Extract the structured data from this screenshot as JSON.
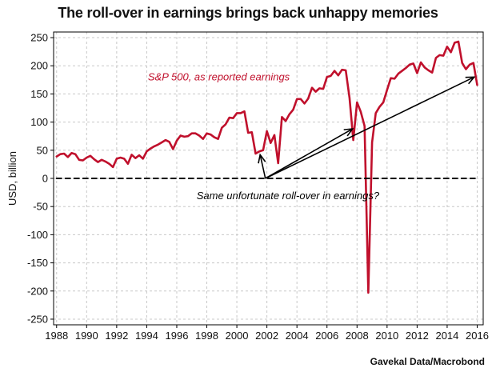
{
  "chart_data": {
    "type": "line",
    "title": "The roll-over in earnings brings back unhappy memories",
    "ylabel": "USD, billion",
    "xlabel": "",
    "source": "Gavekal Data/Macrobond",
    "xlim": [
      1987.8,
      2016.4
    ],
    "ylim": [
      -260,
      260
    ],
    "x_ticks": [
      1988,
      1990,
      1992,
      1994,
      1996,
      1998,
      2000,
      2002,
      2004,
      2006,
      2008,
      2010,
      2012,
      2014,
      2016
    ],
    "y_ticks": [
      -250,
      -200,
      -150,
      -100,
      -50,
      0,
      50,
      100,
      150,
      200,
      250
    ],
    "grid": true,
    "series": [
      {
        "name": "S&P 500, as reported earnings",
        "color": "#c0102c",
        "points": [
          [
            1988.0,
            39
          ],
          [
            1988.25,
            43
          ],
          [
            1988.5,
            44
          ],
          [
            1988.75,
            38
          ],
          [
            1989.0,
            45
          ],
          [
            1989.25,
            43
          ],
          [
            1989.5,
            33
          ],
          [
            1989.75,
            32
          ],
          [
            1990.0,
            37
          ],
          [
            1990.25,
            40
          ],
          [
            1990.5,
            34
          ],
          [
            1990.75,
            29
          ],
          [
            1991.0,
            33
          ],
          [
            1991.25,
            30
          ],
          [
            1991.5,
            26
          ],
          [
            1991.75,
            20
          ],
          [
            1992.0,
            35
          ],
          [
            1992.25,
            37
          ],
          [
            1992.5,
            35
          ],
          [
            1992.75,
            26
          ],
          [
            1993.0,
            42
          ],
          [
            1993.25,
            36
          ],
          [
            1993.5,
            41
          ],
          [
            1993.75,
            35
          ],
          [
            1994.0,
            48
          ],
          [
            1994.25,
            53
          ],
          [
            1994.5,
            57
          ],
          [
            1994.75,
            60
          ],
          [
            1995.0,
            64
          ],
          [
            1995.25,
            68
          ],
          [
            1995.5,
            65
          ],
          [
            1995.75,
            52
          ],
          [
            1996.0,
            67
          ],
          [
            1996.25,
            76
          ],
          [
            1996.5,
            74
          ],
          [
            1996.75,
            75
          ],
          [
            1997.0,
            80
          ],
          [
            1997.25,
            80
          ],
          [
            1997.5,
            76
          ],
          [
            1997.75,
            70
          ],
          [
            1998.0,
            80
          ],
          [
            1998.25,
            78
          ],
          [
            1998.5,
            73
          ],
          [
            1998.75,
            70
          ],
          [
            1999.0,
            90
          ],
          [
            1999.25,
            96
          ],
          [
            1999.5,
            108
          ],
          [
            1999.75,
            107
          ],
          [
            2000.0,
            116
          ],
          [
            2000.25,
            116
          ],
          [
            2000.5,
            119
          ],
          [
            2000.75,
            81
          ],
          [
            2001.0,
            82
          ],
          [
            2001.25,
            44
          ],
          [
            2001.5,
            48
          ],
          [
            2001.75,
            50
          ],
          [
            2002.0,
            84
          ],
          [
            2002.25,
            63
          ],
          [
            2002.5,
            77
          ],
          [
            2002.75,
            27
          ],
          [
            2003.0,
            109
          ],
          [
            2003.25,
            102
          ],
          [
            2003.5,
            114
          ],
          [
            2003.75,
            122
          ],
          [
            2004.0,
            141
          ],
          [
            2004.25,
            141
          ],
          [
            2004.5,
            133
          ],
          [
            2004.75,
            142
          ],
          [
            2005.0,
            161
          ],
          [
            2005.25,
            154
          ],
          [
            2005.5,
            160
          ],
          [
            2005.75,
            159
          ],
          [
            2006.0,
            180
          ],
          [
            2006.25,
            182
          ],
          [
            2006.5,
            191
          ],
          [
            2006.75,
            183
          ],
          [
            2007.0,
            193
          ],
          [
            2007.25,
            192
          ],
          [
            2007.5,
            143
          ],
          [
            2007.75,
            68
          ],
          [
            2008.0,
            135
          ],
          [
            2008.25,
            118
          ],
          [
            2008.5,
            93
          ],
          [
            2008.75,
            -203
          ],
          [
            2009.0,
            64
          ],
          [
            2009.25,
            116
          ],
          [
            2009.5,
            127
          ],
          [
            2009.75,
            135
          ],
          [
            2010.0,
            157
          ],
          [
            2010.25,
            178
          ],
          [
            2010.5,
            177
          ],
          [
            2010.75,
            186
          ],
          [
            2011.0,
            191
          ],
          [
            2011.25,
            196
          ],
          [
            2011.5,
            202
          ],
          [
            2011.75,
            204
          ],
          [
            2012.0,
            187
          ],
          [
            2012.25,
            206
          ],
          [
            2012.5,
            197
          ],
          [
            2012.75,
            192
          ],
          [
            2013.0,
            188
          ],
          [
            2013.25,
            214
          ],
          [
            2013.5,
            219
          ],
          [
            2013.75,
            218
          ],
          [
            2014.0,
            234
          ],
          [
            2014.25,
            224
          ],
          [
            2014.5,
            241
          ],
          [
            2014.75,
            243
          ],
          [
            2015.0,
            205
          ],
          [
            2015.25,
            194
          ],
          [
            2015.5,
            202
          ],
          [
            2015.75,
            205
          ],
          [
            2016.0,
            166
          ]
        ]
      },
      {
        "name": "zero line",
        "color": "#000000",
        "style": "dashed",
        "points": [
          [
            1988.0,
            0
          ],
          [
            2016.0,
            0
          ]
        ]
      }
    ],
    "annotations": [
      {
        "text": "S&P 500, as reported earnings",
        "x": 1998.8,
        "y": 174,
        "color": "#c0102c",
        "style": "italic",
        "anchor": "middle"
      },
      {
        "text": "Same unfortunate roll-over in earnings?",
        "x": 2003.4,
        "y": -37,
        "color": "#000000",
        "style": "italic",
        "anchor": "middle"
      }
    ],
    "arrows": [
      {
        "from": [
          2001.9,
          0
        ],
        "to": [
          2001.55,
          42
        ]
      },
      {
        "from": [
          2001.9,
          0
        ],
        "to": [
          2007.7,
          88
        ]
      },
      {
        "from": [
          2001.9,
          0
        ],
        "to": [
          2015.8,
          180
        ]
      }
    ]
  }
}
